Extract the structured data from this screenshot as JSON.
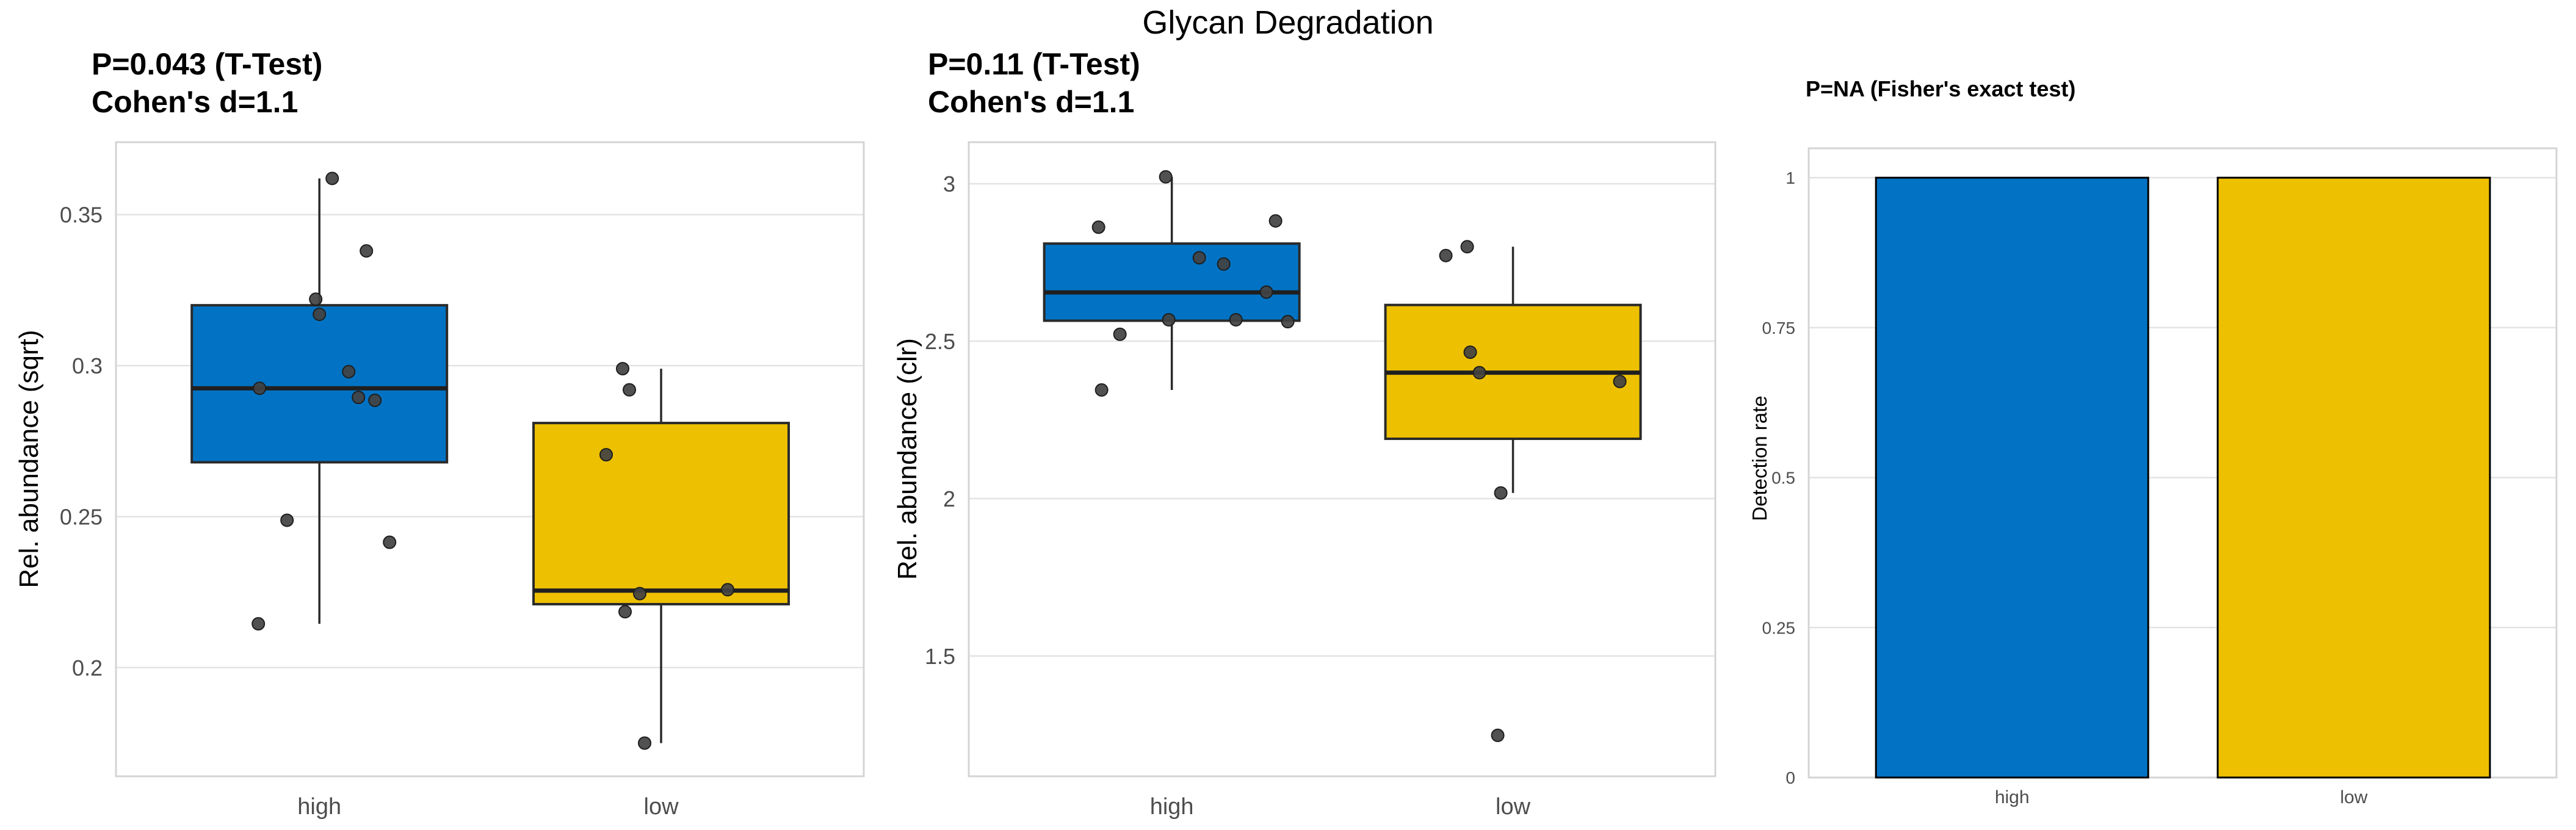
{
  "figure": {
    "title": "Glycan Degradation"
  },
  "chart_data": [
    {
      "type": "boxplot",
      "title": "P=0.043 (T-Test)",
      "subtitle": "Cohen's d=1.1",
      "ylabel": "Rel. abundance (sqrt)",
      "categories": [
        "high",
        "low"
      ],
      "yticks": [
        0.35,
        0.3,
        0.25,
        0.2
      ],
      "ytick_labels": [
        "0.35",
        "0.3",
        "0.25",
        "0.2"
      ],
      "ylim": [
        0.164,
        0.374
      ],
      "grid": true,
      "legend": "none",
      "groups": [
        {
          "name": "high",
          "color": "#0273C4",
          "q1": 0.268,
          "median": 0.2925,
          "q3": 0.32,
          "whisker_low": 0.2145,
          "whisker_high": 0.362,
          "points": [
            0.362,
            0.338,
            0.322,
            0.317,
            0.298,
            0.2925,
            0.2895,
            0.2885,
            0.2488,
            0.2415,
            0.2145
          ],
          "jitter_dx": [
            21,
            77,
            -6,
            0,
            48,
            -98,
            64,
            91,
            -53,
            115,
            -100
          ]
        },
        {
          "name": "low",
          "color": "#EDC001",
          "q1": 0.221,
          "median": 0.2255,
          "q3": 0.281,
          "whisker_low": 0.175,
          "whisker_high": 0.299,
          "points": [
            0.299,
            0.292,
            0.2705,
            0.2258,
            0.2245,
            0.2185,
            0.175
          ],
          "jitter_dx": [
            -63,
            -52,
            -90,
            109,
            -35,
            -59,
            -27
          ]
        }
      ]
    },
    {
      "type": "boxplot",
      "title": "P=0.11 (T-Test)",
      "subtitle": "Cohen's d=1.1",
      "ylabel": "Rel. abundance (clr)",
      "categories": [
        "high",
        "low"
      ],
      "yticks": [
        3,
        2.5,
        2,
        1.5
      ],
      "ytick_labels": [
        "3",
        "2.5",
        "2",
        "1.5"
      ],
      "ylim": [
        1.118,
        3.132
      ],
      "grid": true,
      "legend": "none",
      "groups": [
        {
          "name": "high",
          "color": "#0273C4",
          "q1": 2.565,
          "median": 2.655,
          "q3": 2.81,
          "whisker_low": 2.345,
          "whisker_high": 3.022,
          "points": [
            3.022,
            2.882,
            2.862,
            2.765,
            2.745,
            2.656,
            2.568,
            2.568,
            2.562,
            2.522,
            2.345
          ],
          "jitter_dx": [
            -10,
            170,
            -120,
            45,
            85,
            155,
            -5,
            105,
            190,
            -85,
            -115
          ]
        },
        {
          "name": "low",
          "color": "#EDC001",
          "q1": 2.19,
          "median": 2.4,
          "q3": 2.615,
          "whisker_low": 2.018,
          "whisker_high": 2.8,
          "points": [
            2.8,
            2.772,
            2.465,
            2.4,
            2.372,
            2.018,
            1.248
          ],
          "jitter_dx": [
            -75,
            -110,
            -70,
            -55,
            175,
            -20,
            -25
          ]
        }
      ]
    },
    {
      "type": "bar",
      "title": "P=NA (Fisher's exact test)",
      "ylabel": "Detection rate",
      "categories": [
        "high",
        "low"
      ],
      "values": [
        1,
        1
      ],
      "colors": [
        "#0273C4",
        "#EDC001"
      ],
      "yticks": [
        1,
        0.75,
        0.5,
        0.25,
        0
      ],
      "ytick_labels": [
        "1",
        "0.75",
        "0.5",
        "0.25",
        "0"
      ],
      "ylim": [
        0,
        1.049
      ],
      "grid": true,
      "legend": "none"
    }
  ],
  "style": {
    "blue": "#0273C4",
    "gold": "#EDC001",
    "gridline": "#e3e3e3",
    "panel_border": "#d4d4d4",
    "tick_text": "#4d4d4d",
    "box_stroke": "#2a2a2a",
    "point_fill": "#424242"
  }
}
